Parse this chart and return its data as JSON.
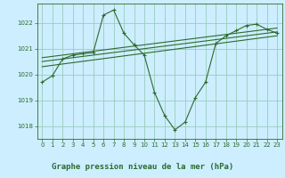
{
  "background_color": "#cceeff",
  "label_bg_color": "#88bb88",
  "grid_color": "#99ccbb",
  "line_color": "#2d6a2d",
  "title": "Graphe pression niveau de la mer (hPa)",
  "xlim": [
    -0.5,
    23.5
  ],
  "ylim": [
    1017.5,
    1022.75
  ],
  "yticks": [
    1018,
    1019,
    1020,
    1021,
    1022
  ],
  "xticks": [
    0,
    1,
    2,
    3,
    4,
    5,
    6,
    7,
    8,
    9,
    10,
    11,
    12,
    13,
    14,
    15,
    16,
    17,
    18,
    19,
    20,
    21,
    22,
    23
  ],
  "main_series": [
    [
      0,
      1019.7
    ],
    [
      1,
      1019.95
    ],
    [
      2,
      1020.6
    ],
    [
      3,
      1020.75
    ],
    [
      4,
      1020.8
    ],
    [
      5,
      1020.85
    ],
    [
      6,
      1022.3
    ],
    [
      7,
      1022.5
    ],
    [
      8,
      1021.6
    ],
    [
      9,
      1021.15
    ],
    [
      10,
      1020.75
    ],
    [
      11,
      1019.3
    ],
    [
      12,
      1018.4
    ],
    [
      13,
      1017.85
    ],
    [
      14,
      1018.15
    ],
    [
      15,
      1019.1
    ],
    [
      16,
      1019.7
    ],
    [
      17,
      1021.2
    ],
    [
      18,
      1021.5
    ],
    [
      19,
      1021.7
    ],
    [
      20,
      1021.9
    ],
    [
      21,
      1021.95
    ],
    [
      22,
      1021.75
    ],
    [
      23,
      1021.6
    ]
  ],
  "trend_lines": [
    [
      [
        0,
        1020.3
      ],
      [
        23,
        1021.5
      ]
    ],
    [
      [
        0,
        1020.5
      ],
      [
        23,
        1021.65
      ]
    ],
    [
      [
        0,
        1020.65
      ],
      [
        23,
        1021.8
      ]
    ]
  ]
}
